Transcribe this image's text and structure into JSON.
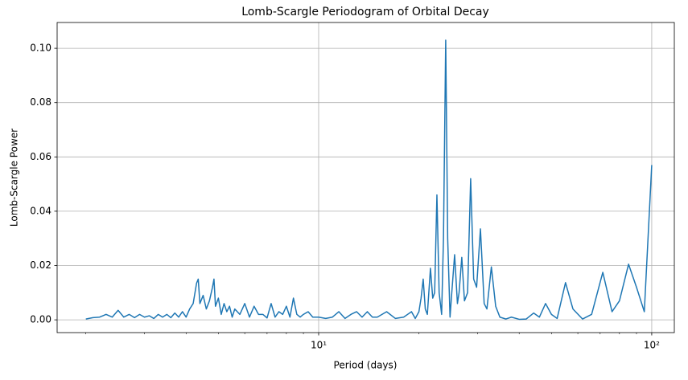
{
  "chart_data": {
    "type": "line",
    "title": "Lomb-Scargle Periodogram of Orbital Decay",
    "x_label": "Period (days)",
    "y_label": "Lomb-Scargle Power",
    "x_scale": "log",
    "grid": true,
    "xlim": [
      1.64,
      116.9
    ],
    "ylim": [
      -0.0047,
      0.1095
    ],
    "xticks": [
      {
        "value": 10,
        "label": "10¹"
      },
      {
        "value": 100,
        "label": "10²"
      }
    ],
    "xminor_ticks": [
      2,
      3,
      4,
      5,
      6,
      7,
      8,
      9,
      20,
      30,
      40,
      50,
      60,
      70,
      80,
      90
    ],
    "yticks": [
      {
        "value": 0,
        "label": "0.00"
      },
      {
        "value": 0.02,
        "label": "0.02"
      },
      {
        "value": 0.04,
        "label": "0.04"
      },
      {
        "value": 0.06,
        "label": "0.06"
      },
      {
        "value": 0.08,
        "label": "0.08"
      },
      {
        "value": 0.1,
        "label": "0.10"
      }
    ],
    "x": [
      2.0,
      2.1,
      2.2,
      2.3,
      2.4,
      2.5,
      2.6,
      2.7,
      2.8,
      2.9,
      3.0,
      3.1,
      3.2,
      3.3,
      3.4,
      3.5,
      3.6,
      3.7,
      3.8,
      3.9,
      4.0,
      4.1,
      4.2,
      4.3,
      4.35,
      4.4,
      4.5,
      4.6,
      4.7,
      4.8,
      4.85,
      4.9,
      5.0,
      5.1,
      5.2,
      5.3,
      5.4,
      5.5,
      5.6,
      5.8,
      6.0,
      6.2,
      6.4,
      6.6,
      6.8,
      7.0,
      7.2,
      7.4,
      7.6,
      7.8,
      8.0,
      8.2,
      8.4,
      8.6,
      8.8,
      9.0,
      9.3,
      9.6,
      10.0,
      10.5,
      11,
      11.5,
      12,
      12.5,
      13,
      13.5,
      14,
      14.5,
      15,
      16,
      17,
      18,
      19,
      19.5,
      20,
      20.3,
      20.6,
      20.9,
      21.2,
      21.66,
      22.0,
      22.3,
      22.65,
      23.0,
      23.4,
      23.7,
      24.07,
      24.4,
      24.8,
      25.1,
      25.6,
      26.1,
      26.4,
      26.9,
      27.4,
      28.0,
      28.6,
      29.2,
      29.8,
      30.6,
      31.4,
      32.0,
      33.0,
      34.0,
      35.0,
      36.5,
      37.9,
      40,
      42,
      44.2,
      46,
      48,
      50,
      52,
      55.1,
      58,
      62,
      66,
      71.3,
      76,
      80,
      85.2,
      90,
      95,
      100
    ],
    "series": [
      {
        "color": "#1f77b4",
        "values": [
          0.0003,
          0.0008,
          0.001,
          0.002,
          0.001,
          0.0035,
          0.001,
          0.002,
          0.0008,
          0.002,
          0.001,
          0.0015,
          0.0005,
          0.002,
          0.001,
          0.002,
          0.0008,
          0.0025,
          0.001,
          0.003,
          0.001,
          0.004,
          0.006,
          0.0135,
          0.015,
          0.006,
          0.009,
          0.004,
          0.007,
          0.012,
          0.015,
          0.005,
          0.008,
          0.002,
          0.006,
          0.003,
          0.005,
          0.001,
          0.004,
          0.002,
          0.006,
          0.001,
          0.005,
          0.002,
          0.002,
          0.0007,
          0.006,
          0.001,
          0.003,
          0.002,
          0.005,
          0.001,
          0.008,
          0.002,
          0.001,
          0.002,
          0.003,
          0.001,
          0.001,
          0.0005,
          0.001,
          0.003,
          0.0005,
          0.002,
          0.003,
          0.001,
          0.003,
          0.001,
          0.001,
          0.003,
          0.0005,
          0.001,
          0.003,
          0.0005,
          0.003,
          0.008,
          0.015,
          0.004,
          0.002,
          0.019,
          0.008,
          0.01,
          0.046,
          0.01,
          0.002,
          0.03,
          0.103,
          0.03,
          0.001,
          0.01,
          0.024,
          0.006,
          0.01,
          0.023,
          0.007,
          0.01,
          0.052,
          0.015,
          0.012,
          0.0335,
          0.006,
          0.004,
          0.0195,
          0.005,
          0.001,
          0.0003,
          0.001,
          0.0002,
          0.0003,
          0.0025,
          0.001,
          0.006,
          0.002,
          0.0005,
          0.0137,
          0.004,
          0.0003,
          0.002,
          0.0175,
          0.003,
          0.007,
          0.0205,
          0.012,
          0.003,
          0.057
        ]
      }
    ]
  }
}
